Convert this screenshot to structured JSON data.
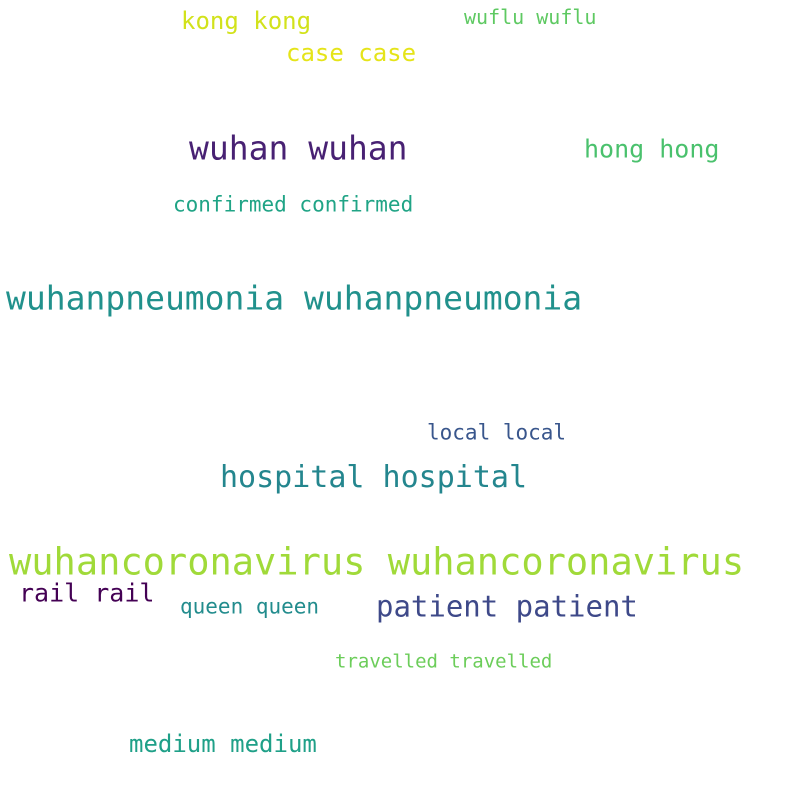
{
  "words": [
    {
      "text": "kong kong",
      "color": "#d2e21b"
    },
    {
      "text": "wuflu wuflu",
      "color": "#5ec962"
    },
    {
      "text": "case case",
      "color": "#e5e419"
    },
    {
      "text": "wuhan wuhan",
      "color": "#482173"
    },
    {
      "text": "hong hong",
      "color": "#4ac16d"
    },
    {
      "text": "confirmed confirmed",
      "color": "#20a486"
    },
    {
      "text": "wuhanpneumonia wuhanpneumonia",
      "color": "#21918c"
    },
    {
      "text": "local local",
      "color": "#39568c"
    },
    {
      "text": "hospital hospital",
      "color": "#24868e"
    },
    {
      "text": "wuhancoronavirus wuhancoronavirus",
      "color": "#a0da39"
    },
    {
      "text": "rail rail",
      "color": "#440154"
    },
    {
      "text": "queen queen",
      "color": "#228c8d"
    },
    {
      "text": "patient patient",
      "color": "#3e4989"
    },
    {
      "text": "travelled travelled",
      "color": "#6ccd5a"
    },
    {
      "text": "medium medium",
      "color": "#1fa088"
    }
  ]
}
